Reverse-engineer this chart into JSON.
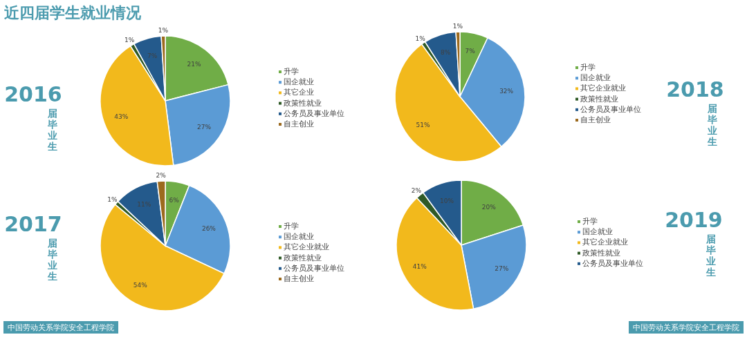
{
  "chart_data": [
    {
      "type": "pie",
      "title": "2016",
      "subtitle": "届毕业生",
      "annotations": [
        "近四届学生就业情况"
      ],
      "categories": [
        "升学",
        "国企就业",
        "其它企业",
        "政策性就业",
        "公务员及事业单位",
        "自主创业"
      ],
      "values": [
        21,
        27,
        43,
        1,
        7,
        1
      ],
      "value_labels": [
        "21%",
        "27%",
        "43%",
        "1%",
        "7%",
        "1%"
      ],
      "colors": [
        "#70ad47",
        "#5b9bd5",
        "#f2b91c",
        "#2f5a26",
        "#245a8c",
        "#9c6a1e"
      ],
      "legend": "right"
    },
    {
      "type": "pie",
      "title": "2018",
      "subtitle": "届毕业生",
      "categories": [
        "升学",
        "国企就业",
        "其它企业就业",
        "政策性就业",
        "公务员及事业单位",
        "自主创业"
      ],
      "values": [
        7,
        32,
        51,
        1,
        8,
        1
      ],
      "value_labels": [
        "7%",
        "32%",
        "51%",
        "1%",
        "8%",
        "1%"
      ],
      "colors": [
        "#70ad47",
        "#5b9bd5",
        "#f2b91c",
        "#2f5a26",
        "#245a8c",
        "#9c6a1e"
      ],
      "legend": "right"
    },
    {
      "type": "pie",
      "title": "2017",
      "subtitle": "届毕业生",
      "annotations": [
        "中国劳动关系学院安全工程学院"
      ],
      "categories": [
        "升学",
        "国企就业",
        "其它企业就业",
        "政策性就业",
        "公务员及事业单位",
        "自主创业"
      ],
      "values": [
        6,
        26,
        54,
        1,
        11,
        2
      ],
      "value_labels": [
        "6%",
        "26%",
        "54%",
        "1%",
        "11%",
        "2%"
      ],
      "colors": [
        "#70ad47",
        "#5b9bd5",
        "#f2b91c",
        "#2f5a26",
        "#245a8c",
        "#9c6a1e"
      ],
      "legend": "right"
    },
    {
      "type": "pie",
      "title": "2019",
      "subtitle": "届毕业生",
      "annotations": [
        "中国劳动关系学院安全工程学院"
      ],
      "categories": [
        "升学",
        "国企就业",
        "其它企业就业",
        "政策性就业",
        "公务员及事业单位"
      ],
      "values": [
        20,
        27,
        41,
        2,
        10
      ],
      "value_labels": [
        "20%",
        "27%",
        "41%",
        "2%",
        "10%"
      ],
      "colors": [
        "#70ad47",
        "#5b9bd5",
        "#f2b91c",
        "#2f5a26",
        "#245a8c"
      ],
      "legend": "right"
    }
  ]
}
